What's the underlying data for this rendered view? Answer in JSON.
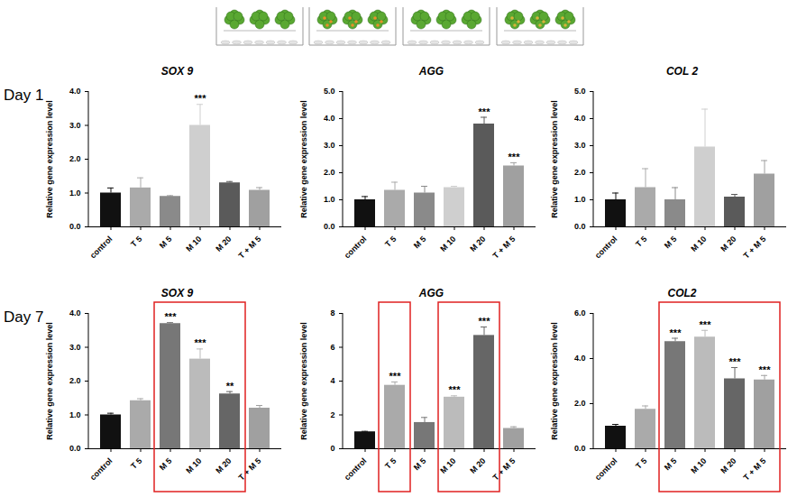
{
  "row_labels": [
    "Day 1",
    "Day 7"
  ],
  "chart_data": [
    {
      "type": "bar",
      "title": "SOX 9",
      "y_label": "Relative gene expression level",
      "categories": [
        "control",
        "T 5",
        "M 5",
        "M 10",
        "M 20",
        "T + M 5"
      ],
      "values": [
        1.0,
        1.15,
        0.9,
        3.0,
        1.3,
        1.08
      ],
      "errors": [
        0.15,
        0.3,
        0.02,
        0.62,
        0.04,
        0.08
      ],
      "significance": [
        null,
        null,
        null,
        "***",
        null,
        null
      ],
      "colors": [
        "#111111",
        "#aaaaaa",
        "#8a8a8a",
        "#cfcfcf",
        "#5a5a5a",
        "#a0a0a0"
      ],
      "ylim": [
        0,
        4
      ],
      "yticks": [
        0,
        1,
        2,
        3,
        4
      ]
    },
    {
      "type": "bar",
      "title": "AGG",
      "y_label": "Relative gene expression level",
      "categories": [
        "control",
        "T 5",
        "M 5",
        "M 10",
        "M 20",
        "T + M 5"
      ],
      "values": [
        1.0,
        1.35,
        1.25,
        1.45,
        3.8,
        2.25
      ],
      "errors": [
        0.12,
        0.3,
        0.25,
        0.05,
        0.25,
        0.12
      ],
      "significance": [
        null,
        null,
        null,
        null,
        "***",
        "***"
      ],
      "colors": [
        "#111111",
        "#aaaaaa",
        "#8a8a8a",
        "#cfcfcf",
        "#5a5a5a",
        "#a0a0a0"
      ],
      "ylim": [
        0,
        5
      ],
      "yticks": [
        0,
        1,
        2,
        3,
        4,
        5
      ]
    },
    {
      "type": "bar",
      "title": "COL 2",
      "y_label": "Relative gene expression level",
      "categories": [
        "control",
        "T 5",
        "M 5",
        "M 10",
        "M 20",
        "T + M 5"
      ],
      "values": [
        1.0,
        1.45,
        1.0,
        2.95,
        1.1,
        1.95
      ],
      "errors": [
        0.25,
        0.7,
        0.45,
        1.4,
        0.1,
        0.5
      ],
      "significance": [
        null,
        null,
        null,
        null,
        null,
        null
      ],
      "colors": [
        "#111111",
        "#aaaaaa",
        "#8a8a8a",
        "#cfcfcf",
        "#5a5a5a",
        "#a0a0a0"
      ],
      "ylim": [
        0,
        5
      ],
      "yticks": [
        0,
        1,
        2,
        3,
        4,
        5
      ]
    },
    {
      "type": "bar",
      "title": "SOX 9",
      "y_label": "Relative gene expression level",
      "categories": [
        "control",
        "T 5",
        "M 5",
        "M 10",
        "M 20",
        "T + M 5"
      ],
      "values": [
        1.0,
        1.42,
        3.7,
        2.65,
        1.62,
        1.2
      ],
      "errors": [
        0.05,
        0.06,
        0.03,
        0.3,
        0.07,
        0.08
      ],
      "significance": [
        null,
        null,
        "***",
        "***",
        "**",
        null
      ],
      "colors": [
        "#111111",
        "#aaaaaa",
        "#777777",
        "#bbbbbb",
        "#666666",
        "#a0a0a0"
      ],
      "ylim": [
        0,
        4
      ],
      "yticks": [
        0,
        1,
        2,
        3,
        4
      ],
      "boxes": [
        [
          "M 5",
          "M 20"
        ]
      ]
    },
    {
      "type": "bar",
      "title": "AGG",
      "y_label": "Relative gene expression level",
      "categories": [
        "control",
        "T 5",
        "M 5",
        "M 10",
        "M 20",
        "T + M 5"
      ],
      "values": [
        1.0,
        3.75,
        1.55,
        3.05,
        6.7,
        1.2
      ],
      "errors": [
        0.03,
        0.2,
        0.3,
        0.08,
        0.5,
        0.1
      ],
      "significance": [
        null,
        "***",
        null,
        "***",
        "***",
        null
      ],
      "colors": [
        "#111111",
        "#aaaaaa",
        "#777777",
        "#bbbbbb",
        "#666666",
        "#a0a0a0"
      ],
      "ylim": [
        0,
        8
      ],
      "yticks": [
        0,
        2,
        4,
        6,
        8
      ],
      "boxes": [
        [
          "T 5",
          "T 5"
        ],
        [
          "M 10",
          "M 20"
        ]
      ]
    },
    {
      "type": "bar",
      "title": "COL2",
      "y_label": "Relative gene expression level",
      "categories": [
        "control",
        "T 5",
        "M 5",
        "M 10",
        "M 20",
        "T + M 5"
      ],
      "values": [
        1.0,
        1.75,
        4.75,
        4.95,
        3.1,
        3.05
      ],
      "errors": [
        0.08,
        0.15,
        0.15,
        0.3,
        0.5,
        0.2
      ],
      "significance": [
        null,
        null,
        "***",
        "***",
        "***",
        "***"
      ],
      "colors": [
        "#111111",
        "#aaaaaa",
        "#777777",
        "#bbbbbb",
        "#666666",
        "#a0a0a0"
      ],
      "ylim": [
        0,
        6
      ],
      "yticks": [
        0,
        2,
        4,
        6
      ],
      "boxes": [
        [
          "M 5",
          "T + M 5"
        ]
      ]
    }
  ]
}
